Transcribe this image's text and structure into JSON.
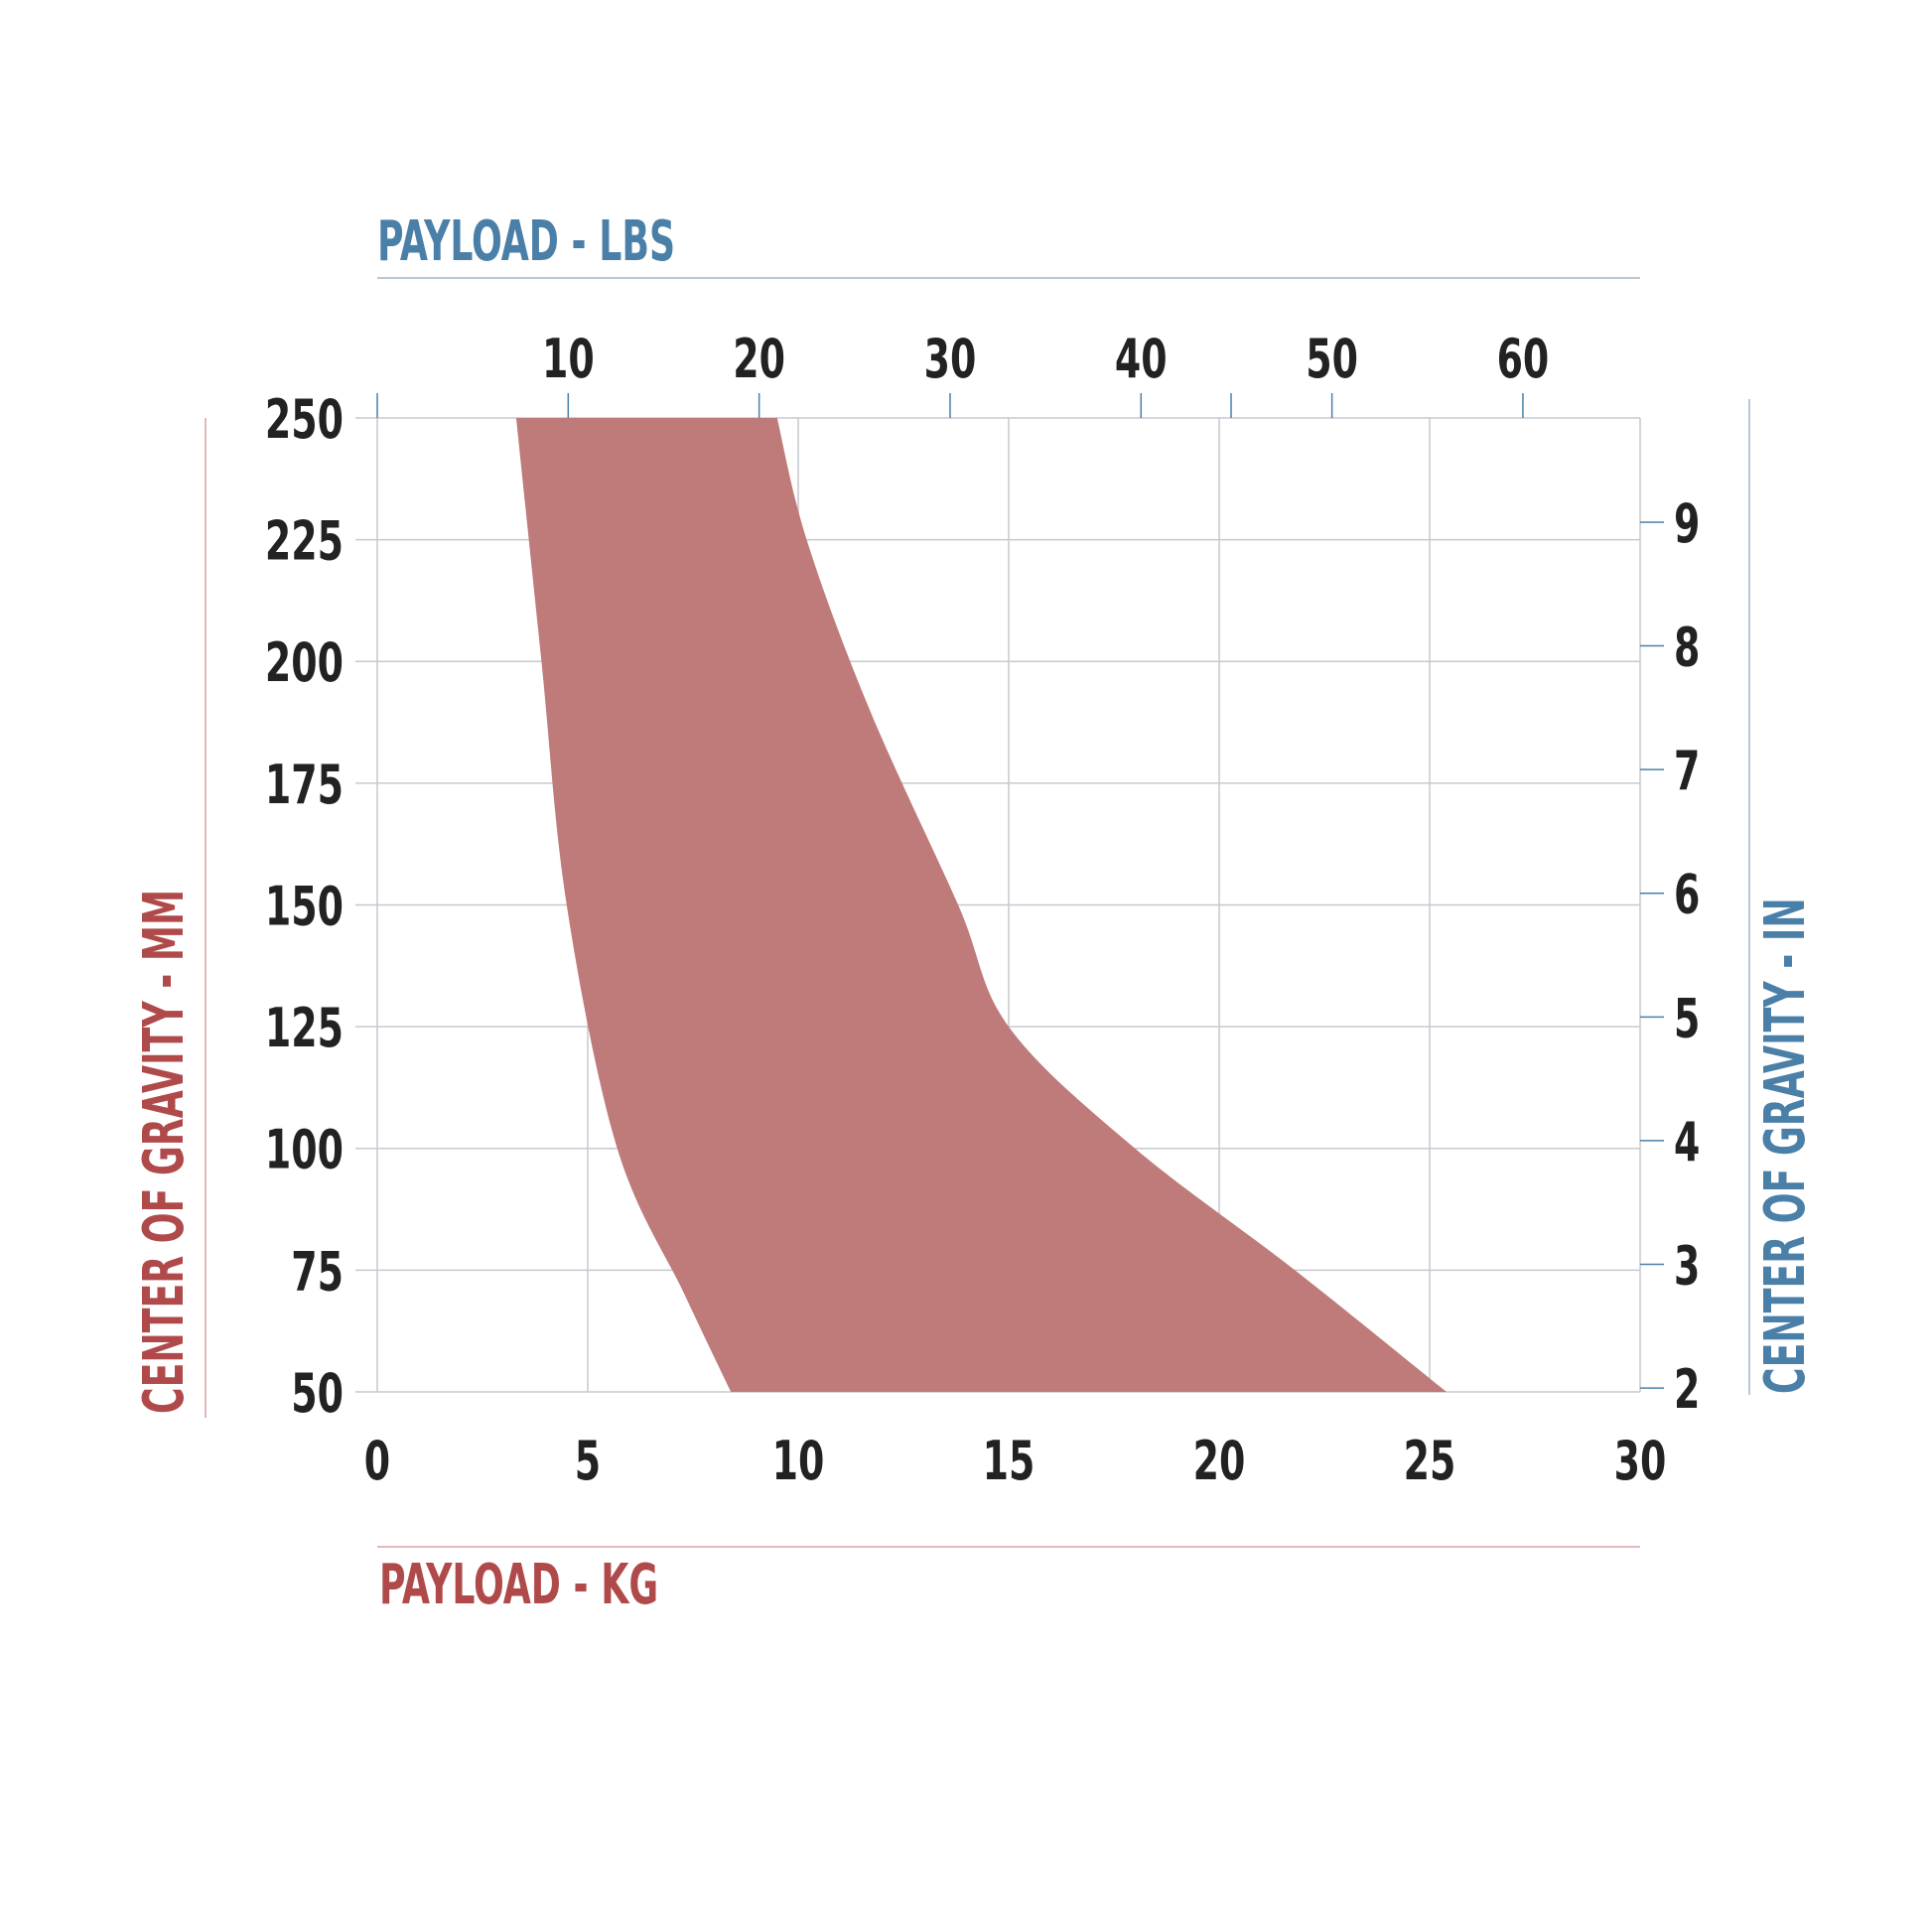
{
  "chart_data": {
    "type": "area",
    "title": "",
    "x_primary": {
      "label": "PAYLOAD - KG",
      "range": [
        0,
        30
      ],
      "ticks": [
        0,
        5,
        10,
        15,
        20,
        25,
        30
      ]
    },
    "x_secondary": {
      "label": "PAYLOAD - LBS",
      "ticks": [
        10,
        20,
        30,
        40,
        50,
        60
      ]
    },
    "y_primary": {
      "label": "CENTER OF GRAVITY - MM",
      "range": [
        50,
        250
      ],
      "ticks": [
        50,
        75,
        100,
        125,
        150,
        175,
        200,
        225,
        250
      ]
    },
    "y_secondary": {
      "label": "CENTER OF GRAVITY - IN",
      "ticks": [
        2,
        3,
        4,
        5,
        6,
        7,
        8,
        9
      ]
    },
    "grid": true,
    "series": [
      {
        "name": "",
        "color": "#bf7a7a",
        "left_boundary": {
          "x": [
            3.3,
            3.9,
            4.5,
            5.7,
            7.3,
            8.4
          ],
          "y": [
            250,
            200,
            150,
            100,
            70,
            50
          ]
        },
        "right_boundary": {
          "x": [
            9.5,
            10.2,
            11.7,
            13.8,
            15.0,
            18.0,
            21.8,
            25.4
          ],
          "y": [
            250,
            225,
            190,
            150,
            125,
            100,
            75,
            50
          ]
        }
      }
    ],
    "colors": {
      "kg_accent": "#b04a4a",
      "lbs_accent": "#4a7fa8",
      "grid": "#c5c9cf",
      "tick_text": "#222222"
    }
  }
}
